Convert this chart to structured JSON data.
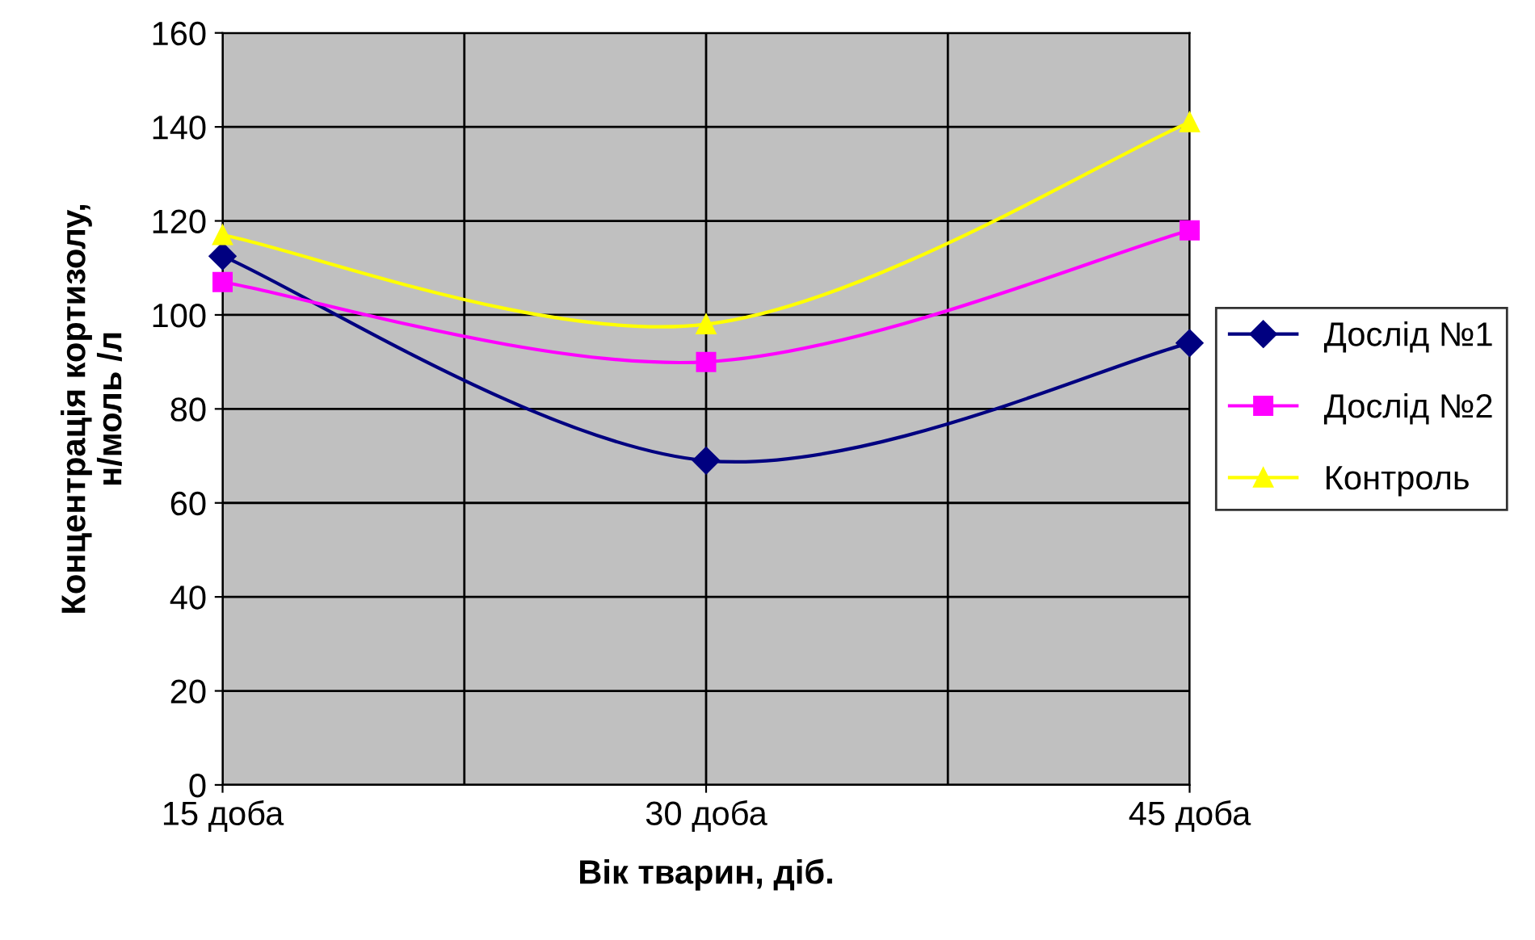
{
  "chart_data": {
    "type": "line",
    "xlabel": "Вік тварин, діб.",
    "ylabel": "Концентрація кортизолу,\nн/моль /л",
    "categories": [
      "15 доба",
      "30 доба",
      "45 доба"
    ],
    "series": [
      {
        "name": "Дослід №1",
        "color": "#000080",
        "marker": "diamond",
        "values": [
          112.5,
          69,
          94
        ]
      },
      {
        "name": "Дослід №2",
        "color": "#ff00ff",
        "marker": "square",
        "values": [
          107,
          90,
          118
        ]
      },
      {
        "name": "Контроль",
        "color": "#ffff00",
        "marker": "triangle",
        "values": [
          117,
          98,
          141
        ]
      }
    ],
    "ylim": [
      0,
      160
    ],
    "yticks": [
      0,
      20,
      40,
      60,
      80,
      100,
      120,
      140,
      160
    ],
    "grid": true,
    "legend": "right",
    "line_style": "solid"
  }
}
